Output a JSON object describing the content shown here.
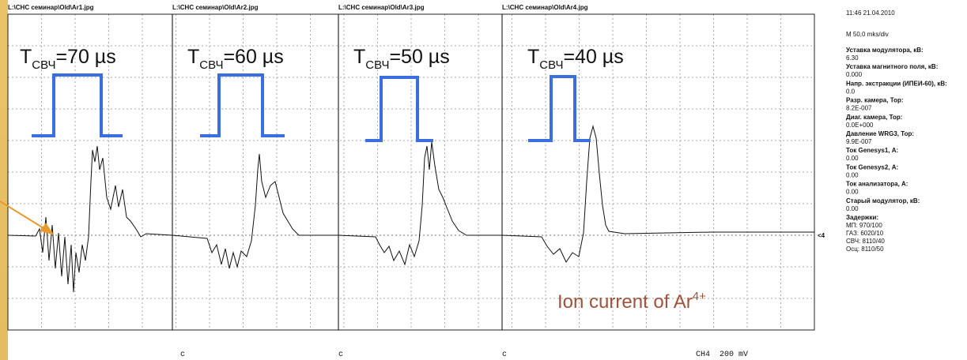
{
  "screen": {
    "panels": [
      {
        "path": "L:\\CHC семинар\\Old\\Ar1.jpg",
        "label": {
          "t": "T",
          "sub": "СВЧ",
          "rest": "=70 µs"
        },
        "marker": "c"
      },
      {
        "path": "L:\\CHC семинар\\Old\\Ar2.jpg",
        "label": {
          "t": "T",
          "sub": "СВЧ",
          "rest": "=60 µs"
        },
        "marker": "c"
      },
      {
        "path": "L:\\CHC семинар\\Old\\Ar3.jpg",
        "label": {
          "t": "T",
          "sub": "СВЧ",
          "rest": "=50 µs"
        },
        "marker": "c"
      },
      {
        "path": "L:\\CHC семинар\\Old\\Ar4.jpg",
        "label": {
          "t": "T",
          "sub": "СВЧ",
          "rest": "=40 µs"
        }
      }
    ],
    "timestamp": "11:46 21.04.2010",
    "timebase": "M 50,0 mks/div",
    "settings": [
      {
        "name": "Уставка модулятора, кВ:",
        "value": "6.30"
      },
      {
        "name": "Уставка магнитного поля, кВ:",
        "value": "0.000"
      },
      {
        "name": "Напр. экстракции (ИПЕИ-60), кВ:",
        "value": "0.0"
      },
      {
        "name": "Разр. камера, Тор:",
        "value": "8.2E-007"
      },
      {
        "name": "Диаг. камера, Тор:",
        "value": "0.0E+000"
      },
      {
        "name": "Давление WRG3, Тор:",
        "value": "9.9E-007"
      },
      {
        "name": "Ток Genesys1, А:",
        "value": "0.00"
      },
      {
        "name": "Ток Genesys2, А:",
        "value": "0.00"
      },
      {
        "name": "Ток анализатора, А:",
        "value": "0.00"
      },
      {
        "name": "Старый модулятор, кВ:",
        "value": "0.00"
      }
    ],
    "delays_title": "Задержки:",
    "delays": [
      "МП: 970/100",
      "ГАЗ: 6020/10",
      "СВЧ: 8110/40",
      "Осц: 8110/50"
    ],
    "channel_marker": "<4",
    "channel": "CH4  200 mV",
    "annotation": {
      "text": "Ion current of Ar",
      "sup": "4+"
    }
  }
}
